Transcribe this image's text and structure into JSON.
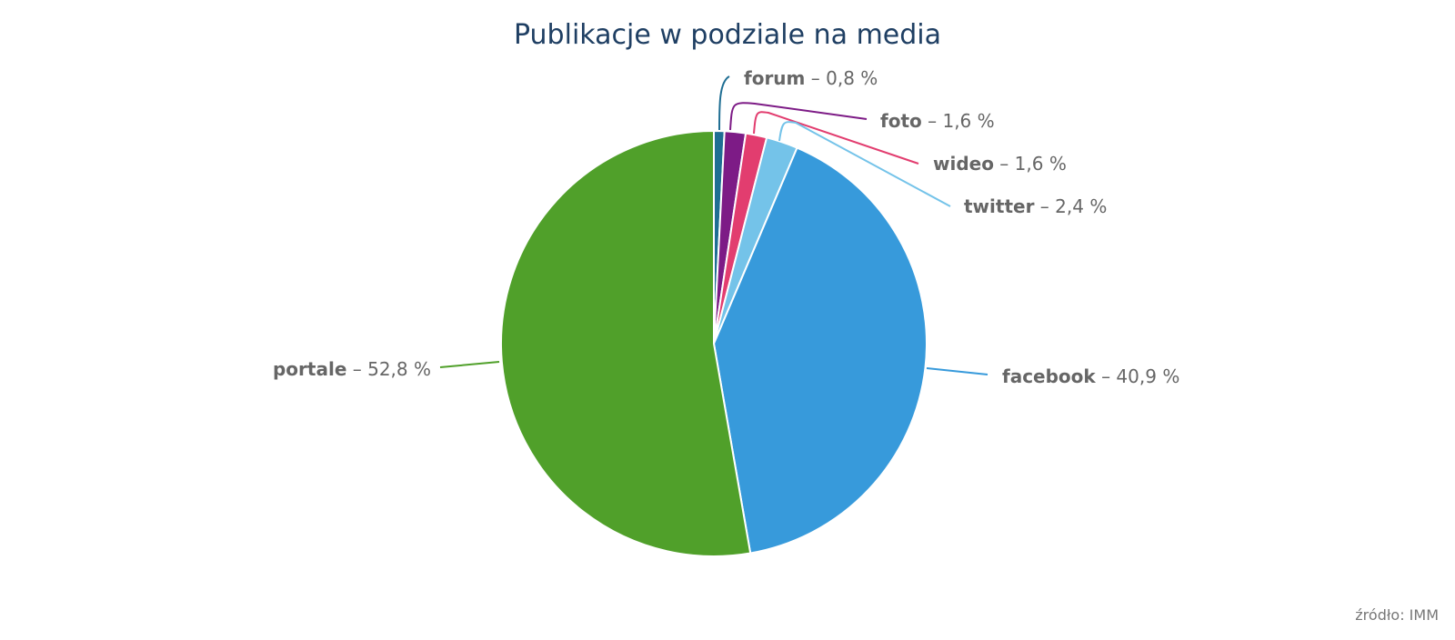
{
  "chart_data": {
    "type": "pie",
    "title": "Publikacje w podziale na media",
    "source": "źródło: IMM",
    "separator": "–",
    "start_angle_deg": 0,
    "slices": [
      {
        "name": "forum",
        "value": 0.8,
        "label": "0,8 %",
        "color": "#1f6e93"
      },
      {
        "name": "foto",
        "value": 1.6,
        "label": "1,6 %",
        "color": "#7d1b86"
      },
      {
        "name": "wideo",
        "value": 1.6,
        "label": "1,6 %",
        "color": "#e23d6f"
      },
      {
        "name": "twitter",
        "value": 2.4,
        "label": "2,4 %",
        "color": "#74c3e9"
      },
      {
        "name": "facebook",
        "value": 40.9,
        "label": "40,9 %",
        "color": "#379adb"
      },
      {
        "name": "portale",
        "value": 52.8,
        "label": "52,8 %",
        "color": "#50a02a"
      }
    ]
  }
}
